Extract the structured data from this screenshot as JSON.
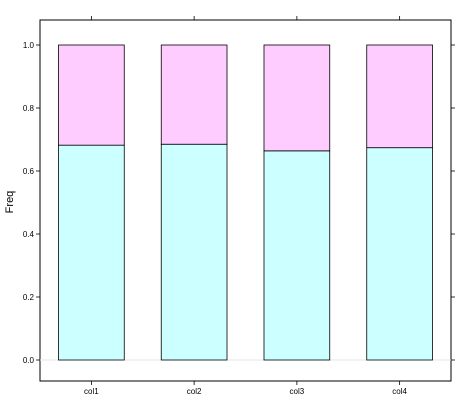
{
  "chart_data": {
    "type": "bar",
    "stacked": true,
    "categories": [
      "col1",
      "col2",
      "col3",
      "col4"
    ],
    "series": [
      {
        "values": [
          0.682,
          0.685,
          0.664,
          0.674
        ],
        "color": "#ccffff"
      },
      {
        "values": [
          0.318,
          0.315,
          0.336,
          0.326
        ],
        "color": "#ffccff"
      }
    ],
    "ylabel": "Freq",
    "ylim": [
      -0.05,
      1.08
    ],
    "yticks": [
      0.0,
      0.2,
      0.4,
      0.6,
      0.8,
      1.0
    ],
    "ytick_labels": [
      "0.0",
      "0.2",
      "0.4",
      "0.6",
      "0.8",
      "1.0"
    ],
    "grid": false,
    "legend": "none"
  }
}
